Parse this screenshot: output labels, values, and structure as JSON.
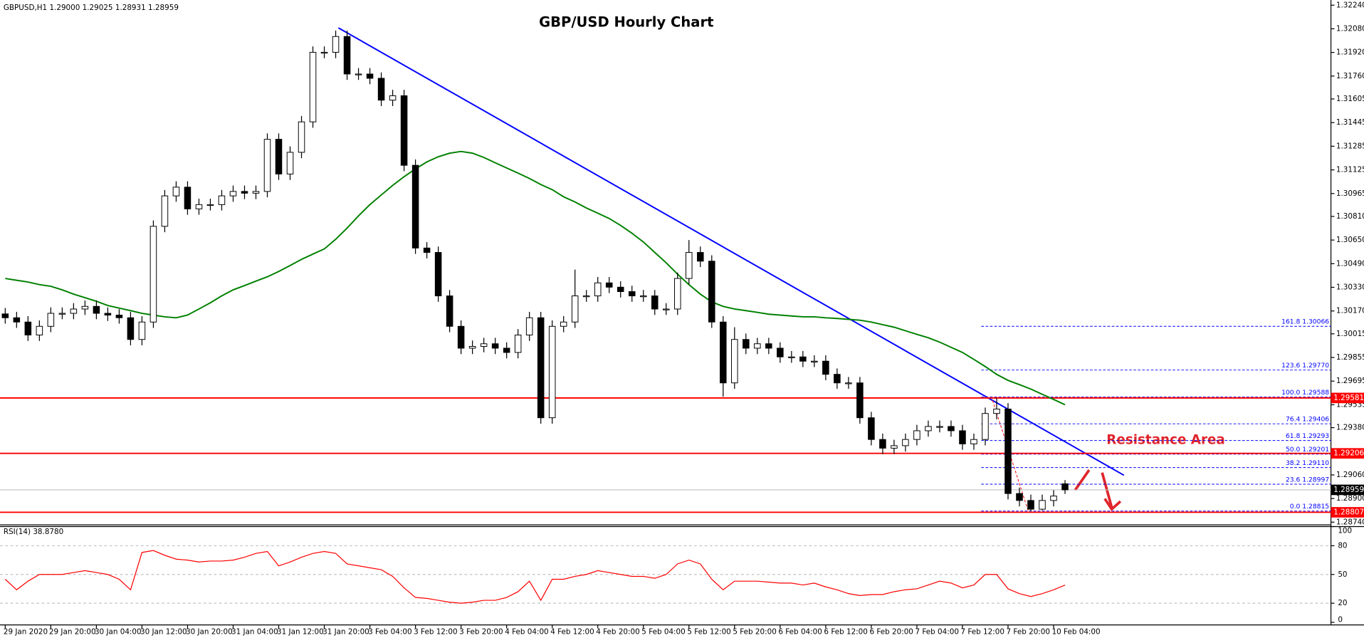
{
  "chart_data": [
    {
      "type": "candlestick",
      "title": "GBP/USD Hourly Chart",
      "header": "GBPUSD,H1  1.29000 1.29025 1.28931 1.28959",
      "categories": [
        "29 Jan 2020",
        null,
        null,
        null,
        "29 Jan 20:00",
        null,
        null,
        null,
        "30 Jan 04:00",
        null,
        null,
        null,
        "30 Jan 12:00",
        null,
        null,
        null,
        "30 Jan 20:00",
        null,
        null,
        null,
        "31 Jan 04:00",
        null,
        null,
        null,
        "31 Jan 12:00",
        null,
        null,
        null,
        "31 Jan 20:00",
        null,
        null,
        null,
        "3 Feb 04:00",
        null,
        null,
        null,
        "3 Feb 12:00",
        null,
        null,
        null,
        "3 Feb 20:00",
        null,
        null,
        null,
        "4 Feb 04:00",
        null,
        null,
        null,
        "4 Feb 12:00",
        null,
        null,
        null,
        "4 Feb 20:00",
        null,
        null,
        null,
        "5 Feb 04:00",
        null,
        null,
        null,
        "5 Feb 12:00",
        null,
        null,
        null,
        "5 Feb 20:00",
        null,
        null,
        null,
        "6 Feb 04:00",
        null,
        null,
        null,
        "6 Feb 12:00",
        null,
        null,
        null,
        "6 Feb 20:00",
        null,
        null,
        null,
        "7 Feb 04:00",
        null,
        null,
        null,
        "7 Feb 12:00",
        null,
        null,
        null,
        "7 Feb 20:00",
        null,
        null,
        null,
        "10 Feb 04:00",
        null
      ],
      "open": [
        1.3015,
        1.30124,
        1.30095,
        1.30007,
        1.30066,
        1.30154,
        1.30154,
        1.30183,
        1.30201,
        1.30154,
        1.30142,
        1.30124,
        1.29977,
        1.30095,
        1.30743,
        1.30949,
        1.31008,
        1.30861,
        1.3089,
        1.3089,
        1.30949,
        1.30979,
        1.30967,
        1.30979,
        1.31332,
        1.31097,
        1.31244,
        1.3145,
        1.31921,
        1.31921,
        1.32028,
        1.31774,
        1.31774,
        1.31745,
        1.31597,
        1.31627,
        1.31156,
        1.30596,
        1.30566,
        1.30272,
        1.30066,
        1.29918,
        1.2993,
        1.29948,
        1.29918,
        1.29889,
        1.30007,
        1.30124,
        1.29447,
        1.30066,
        1.30095,
        1.30272,
        1.30272,
        1.3036,
        1.30331,
        1.30301,
        1.30272,
        1.30272,
        1.30183,
        1.30183,
        1.3039,
        1.30566,
        1.30507,
        1.30095,
        1.29683,
        1.29977,
        1.29918,
        1.29948,
        1.29918,
        1.29859,
        1.29859,
        1.2983,
        1.2983,
        1.29741,
        1.29683,
        1.29683,
        1.29447,
        1.293,
        1.29241,
        1.29258,
        1.293,
        1.29359,
        1.29388,
        1.29388,
        1.29359,
        1.2927,
        1.293,
        1.29476,
        1.29506,
        1.28934,
        1.28887,
        1.28828,
        1.28887,
        1.29
      ],
      "high": [
        1.3019,
        1.30164,
        1.30135,
        1.30106,
        1.30194,
        1.30194,
        1.30223,
        1.30241,
        1.30241,
        1.30194,
        1.30182,
        1.30164,
        1.30135,
        1.30783,
        1.30989,
        1.31048,
        1.31048,
        1.3093,
        1.3093,
        1.30989,
        1.31019,
        1.31019,
        1.31019,
        1.31372,
        1.31372,
        1.31284,
        1.3149,
        1.31961,
        1.31961,
        1.32068,
        1.32068,
        1.31814,
        1.31814,
        1.31785,
        1.31667,
        1.31667,
        1.31196,
        1.30636,
        1.30606,
        1.30312,
        1.30106,
        1.2997,
        1.29988,
        1.29988,
        1.29958,
        1.30047,
        1.30164,
        1.30164,
        1.30106,
        1.30135,
        1.3045,
        1.30312,
        1.304,
        1.304,
        1.30371,
        1.30341,
        1.30312,
        1.30312,
        1.30223,
        1.3043,
        1.3065,
        1.30606,
        1.30547,
        1.30135,
        1.3006,
        1.30017,
        1.29988,
        1.29988,
        1.29958,
        1.29899,
        1.29899,
        1.2987,
        1.2987,
        1.29781,
        1.29723,
        1.29723,
        1.29487,
        1.2934,
        1.29298,
        1.2934,
        1.29399,
        1.29428,
        1.29428,
        1.29428,
        1.29399,
        1.2934,
        1.29516,
        1.29581,
        1.29546,
        1.28974,
        1.28927,
        1.28927,
        1.28957,
        1.29025
      ],
      "low": [
        1.30084,
        1.30055,
        1.29967,
        1.29967,
        1.30026,
        1.30114,
        1.30114,
        1.30143,
        1.30114,
        1.30102,
        1.30084,
        1.29937,
        1.29937,
        1.30055,
        1.30703,
        1.30909,
        1.30821,
        1.30821,
        1.3085,
        1.3085,
        1.30909,
        1.30927,
        1.30927,
        1.30939,
        1.31057,
        1.31057,
        1.31204,
        1.3141,
        1.31881,
        1.31881,
        1.31734,
        1.31734,
        1.31705,
        1.31557,
        1.31557,
        1.31116,
        1.30556,
        1.30526,
        1.30232,
        1.30026,
        1.29878,
        1.29878,
        1.2989,
        1.29878,
        1.29849,
        1.29849,
        1.29967,
        1.29407,
        1.29407,
        1.30026,
        1.30055,
        1.30232,
        1.30232,
        1.30291,
        1.30261,
        1.30232,
        1.30232,
        1.30143,
        1.30143,
        1.30143,
        1.3035,
        1.30467,
        1.30055,
        1.2959,
        1.29643,
        1.29878,
        1.29878,
        1.29878,
        1.29819,
        1.29819,
        1.2979,
        1.2979,
        1.29701,
        1.29643,
        1.29643,
        1.29407,
        1.2926,
        1.29201,
        1.29201,
        1.29218,
        1.2926,
        1.29319,
        1.29348,
        1.29319,
        1.2923,
        1.2923,
        1.2926,
        1.29436,
        1.28894,
        1.28847,
        1.28815,
        1.2882,
        1.28847,
        1.28931
      ],
      "close": [
        1.30124,
        1.30095,
        1.30007,
        1.30066,
        1.30154,
        1.30154,
        1.30183,
        1.30201,
        1.30154,
        1.30142,
        1.30124,
        1.29977,
        1.30095,
        1.30743,
        1.30949,
        1.31008,
        1.30861,
        1.3089,
        1.3089,
        1.30949,
        1.30979,
        1.30967,
        1.30979,
        1.31332,
        1.31097,
        1.31244,
        1.3145,
        1.31921,
        1.31921,
        1.32028,
        1.31774,
        1.31774,
        1.31745,
        1.31597,
        1.31627,
        1.31156,
        1.30596,
        1.30566,
        1.30272,
        1.30066,
        1.29918,
        1.2993,
        1.29948,
        1.29918,
        1.29889,
        1.30007,
        1.30124,
        1.29447,
        1.30066,
        1.30095,
        1.30272,
        1.30272,
        1.3036,
        1.30331,
        1.30301,
        1.30272,
        1.30272,
        1.30183,
        1.30183,
        1.3039,
        1.30566,
        1.30507,
        1.30095,
        1.29683,
        1.29977,
        1.29918,
        1.29948,
        1.29918,
        1.29859,
        1.29859,
        1.2983,
        1.2983,
        1.29741,
        1.29683,
        1.29683,
        1.29447,
        1.293,
        1.29241,
        1.29258,
        1.293,
        1.29359,
        1.29388,
        1.29388,
        1.29359,
        1.2927,
        1.293,
        1.29476,
        1.29506,
        1.28934,
        1.28887,
        1.28828,
        1.28887,
        1.28917,
        1.28959
      ],
      "up_color": "#ffffff",
      "down_color": "#000000",
      "moving_average": {
        "color": "#008000",
        "values": [
          1.3039,
          1.30378,
          1.30366,
          1.30348,
          1.30337,
          1.30313,
          1.30284,
          1.3026,
          1.30236,
          1.30207,
          1.30189,
          1.30172,
          1.30154,
          1.30142,
          1.3013,
          1.30124,
          1.30142,
          1.30183,
          1.30225,
          1.30272,
          1.30313,
          1.30342,
          1.30372,
          1.30401,
          1.30437,
          1.30478,
          1.30519,
          1.30555,
          1.3059,
          1.30655,
          1.30731,
          1.30814,
          1.3089,
          1.30955,
          1.3102,
          1.31079,
          1.31132,
          1.31179,
          1.31214,
          1.31238,
          1.3125,
          1.31238,
          1.31209,
          1.31173,
          1.31138,
          1.31103,
          1.31067,
          1.31026,
          1.30991,
          1.30943,
          1.30908,
          1.30867,
          1.30832,
          1.30796,
          1.30749,
          1.30696,
          1.30637,
          1.30566,
          1.30496,
          1.30419,
          1.30348,
          1.30284,
          1.30231,
          1.30201,
          1.30183,
          1.30172,
          1.3016,
          1.30148,
          1.30142,
          1.30136,
          1.3013,
          1.3013,
          1.30124,
          1.30119,
          1.30113,
          1.30107,
          1.30095,
          1.30077,
          1.3006,
          1.30036,
          1.30012,
          1.29989,
          1.29959,
          1.29924,
          1.29889,
          1.29842,
          1.29794,
          1.29741,
          1.297,
          1.29671,
          1.29641,
          1.29606,
          1.29571,
          1.29535
        ]
      },
      "ylim": [
        1.28722,
        1.32275
      ],
      "yticks": [
        {
          "value": 1.3224,
          "label": "1.32240"
        },
        {
          "value": 1.3208,
          "label": "1.32080"
        },
        {
          "value": 1.3192,
          "label": "1.31920"
        },
        {
          "value": 1.3176,
          "label": "1.31760"
        },
        1.31605,
        1.31445,
        1.31285,
        1.31125,
        1.30965,
        {
          "value": 1.3081,
          "label": "1.30810"
        },
        {
          "value": 1.3065,
          "label": "1.30650"
        },
        {
          "value": 1.3049,
          "label": "1.30490"
        },
        {
          "value": 1.3033,
          "label": "1.30330"
        },
        {
          "value": 1.3017,
          "label": "1.30170"
        },
        1.30015,
        1.29855,
        1.29695,
        1.29535,
        {
          "value": 1.2938,
          "label": "1.29380"
        },
        {
          "value": 1.2906,
          "label": "1.29060"
        },
        {
          "value": 1.289,
          "label": "1.28900"
        },
        {
          "value": 1.2874,
          "label": "1.28740"
        }
      ],
      "resistance_lines": [
        1.29581,
        1.29206,
        1.28807
      ],
      "resistance_color": "#ff0000",
      "current_price": 1.28959,
      "fib_color": "#0000ff",
      "fib_levels": [
        {
          "label": "161.8 1.30066",
          "price": 1.30066
        },
        {
          "label": "123.6 1.29770",
          "price": 1.2977
        },
        {
          "label": "100.0 1.29588",
          "price": 1.29588
        },
        {
          "label": "76.4 1.29406",
          "price": 1.29406
        },
        {
          "label": "61.8 1.29293",
          "price": 1.29293
        },
        {
          "label": "50.0 1.29201",
          "price": 1.29201
        },
        {
          "label": "38.2 1.29110",
          "price": 1.2911
        },
        {
          "label": "23.6 1.28997",
          "price": 1.28997
        },
        {
          "label": "0.0 1.28815",
          "price": 1.28815
        }
      ],
      "annotation": "Resistance Area"
    },
    {
      "type": "line",
      "label": "RSI(14) 38.8780",
      "color": "#ff0000",
      "values": [
        45,
        34,
        43,
        50,
        50,
        50,
        52,
        54,
        52,
        50,
        45,
        34,
        73,
        75,
        70,
        66,
        65,
        63,
        64,
        64,
        65,
        68,
        72,
        74,
        59,
        63,
        68,
        72,
        74,
        72,
        61,
        59,
        57,
        55,
        48,
        36,
        26,
        25,
        23,
        21,
        20,
        21,
        23,
        23,
        26,
        32,
        43,
        23,
        45,
        45,
        48,
        50,
        54,
        52,
        50,
        48,
        48,
        46,
        50,
        61,
        65,
        61,
        45,
        34,
        43,
        43,
        43,
        42,
        41,
        41,
        39,
        41,
        37,
        34,
        30,
        28,
        29,
        29,
        32,
        34,
        35,
        39,
        43,
        41,
        36,
        39,
        50,
        50,
        35,
        30,
        27,
        30,
        34,
        38.878
      ],
      "ylim": [
        0,
        100
      ],
      "yticks": [
        100,
        80,
        50,
        20,
        0
      ]
    }
  ]
}
